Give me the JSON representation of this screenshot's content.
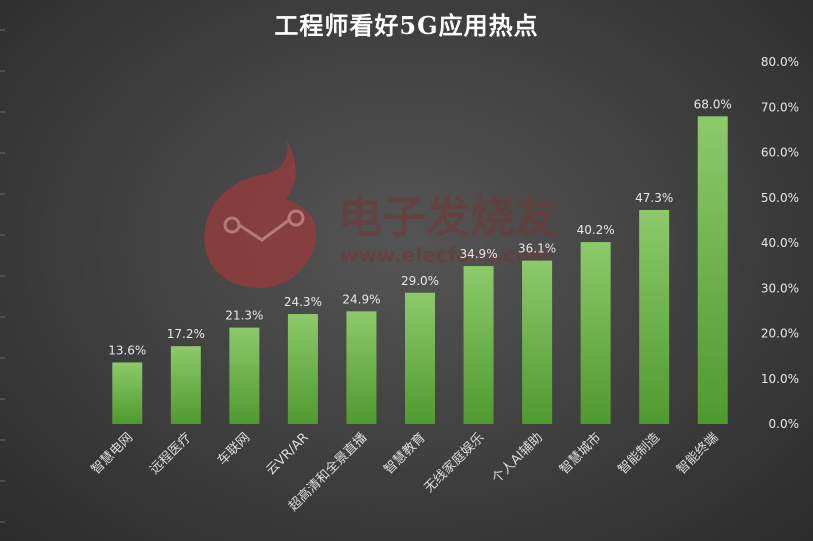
{
  "title": "工程师看好5G应用热点",
  "watermark": {
    "brand": "电子发烧友",
    "url": "www.elecfans.com"
  },
  "colors": {
    "bar_top": "#8cca6a",
    "bar_bottom": "#4f9a2e",
    "background": "#3e3e3e",
    "text": "#e6e6e6"
  },
  "chart_data": {
    "type": "bar",
    "title": "工程师看好5G应用热点",
    "categories": [
      "智慧电网",
      "远程医疗",
      "车联网",
      "云VR/AR",
      "超高清和全景直播",
      "智慧教育",
      "无线家庭娱乐",
      "个人AI辅助",
      "智慧城市",
      "智能制造",
      "智能终端"
    ],
    "values": [
      13.6,
      17.2,
      21.3,
      24.3,
      24.9,
      29.0,
      34.9,
      36.1,
      40.2,
      47.3,
      68.0
    ],
    "data_labels": [
      "13.6%",
      "17.2%",
      "21.3%",
      "24.3%",
      "24.9%",
      "29.0%",
      "34.9%",
      "36.1%",
      "40.2%",
      "47.3%",
      "68.0%"
    ],
    "y_ticks": [
      "0.0%",
      "10.0%",
      "20.0%",
      "30.0%",
      "40.0%",
      "50.0%",
      "60.0%",
      "70.0%",
      "80.0%"
    ],
    "ylim": [
      0,
      80
    ],
    "y_axis_side": "right",
    "grid": false,
    "legend": "none"
  }
}
